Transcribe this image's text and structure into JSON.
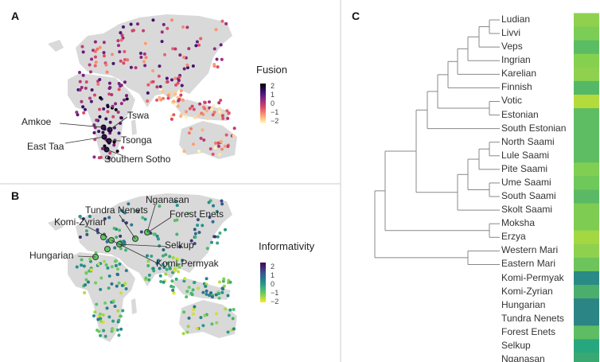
{
  "panels": {
    "a": {
      "label": "A",
      "legend_title": "Fusion",
      "legend_ticks": [
        "2",
        "1",
        "0",
        "−1",
        "−2"
      ],
      "annotations": [
        "Amkoe",
        "Tswa",
        "East Taa",
        "Tsonga",
        "Southern Sotho"
      ],
      "colorscale": [
        "#000004",
        "#3b0f70",
        "#8c2981",
        "#de4968",
        "#fe9f6d",
        "#fcfdbf"
      ]
    },
    "b": {
      "label": "B",
      "legend_title": "Informativity",
      "legend_ticks": [
        "2",
        "1",
        "0",
        "−1",
        "−2"
      ],
      "annotations": [
        "Tundra Nenets",
        "Nganasan",
        "Forest Enets",
        "Komi-Zyrian",
        "Selkup",
        "Hungarian",
        "Komi-Permyak"
      ],
      "colorscale": [
        "#440154",
        "#3b528b",
        "#21918c",
        "#5ec962",
        "#fde725"
      ]
    },
    "c": {
      "label": "C",
      "tree": "((((((((((Ludian,Livvi),Veps),Ingrian),Karelian),Finnish),(Votic,Estonian)),South Estonian),((((North Saami,Lule Saami),Pite Saami),(Ume Saami,South Saami)),Skolt Saami)),(Moksha,Erzya)),(Western Mari,Eastern Mari)),((Komi-Permyak,Komi-Zyrian),Hungarian)),(((Tundra Nenets,Forest Enets),Selkup),Nganasan))",
      "leaves": [
        {
          "name": "Ludian",
          "color": "#8fd14f"
        },
        {
          "name": "Livvi",
          "color": "#7ccd55"
        },
        {
          "name": "Veps",
          "color": "#5bbd63"
        },
        {
          "name": "Ingrian",
          "color": "#86d04f"
        },
        {
          "name": "Karelian",
          "color": "#8fd14f"
        },
        {
          "name": "Finnish",
          "color": "#55b867"
        },
        {
          "name": "Votic",
          "color": "#b3db3c"
        },
        {
          "name": "Estonian",
          "color": "#5ebd62"
        },
        {
          "name": "South Estonian",
          "color": "#5ebd62"
        },
        {
          "name": "North Saami",
          "color": "#5ebd62"
        },
        {
          "name": "Lule Saami",
          "color": "#5ebd62"
        },
        {
          "name": "Pite Saami",
          "color": "#80cf52"
        },
        {
          "name": "Ume Saami",
          "color": "#6fc85a"
        },
        {
          "name": "South Saami",
          "color": "#5bb966"
        },
        {
          "name": "Skolt Saami",
          "color": "#7ecd52"
        },
        {
          "name": "Moksha",
          "color": "#7ecd52"
        },
        {
          "name": "Erzya",
          "color": "#a3d843"
        },
        {
          "name": "Western Mari",
          "color": "#8fd14f"
        },
        {
          "name": "Eastern Mari",
          "color": "#6cc45b"
        },
        {
          "name": "Komi-Permyak",
          "color": "#2a8a86"
        },
        {
          "name": "Komi-Zyrian",
          "color": "#4cae6c"
        },
        {
          "name": "Hungarian",
          "color": "#2b8585"
        },
        {
          "name": "Tundra Nenets",
          "color": "#2b8585"
        },
        {
          "name": "Forest Enets",
          "color": "#5ebd62"
        },
        {
          "name": "Selkup",
          "color": "#27a77d"
        },
        {
          "name": "Nganasan",
          "color": "#3aa873"
        }
      ]
    }
  }
}
